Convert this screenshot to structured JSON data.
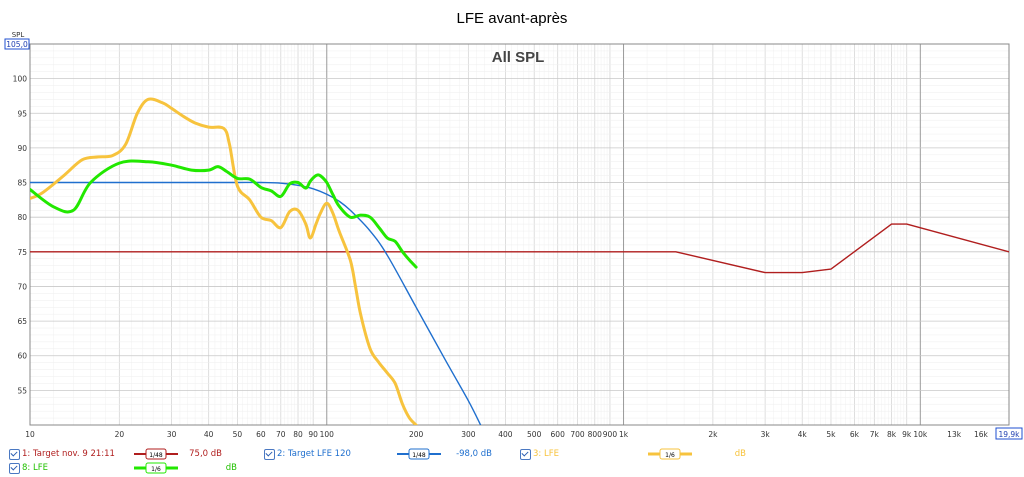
{
  "chart_data": {
    "type": "line",
    "title": "LFE avant-après",
    "subtitle": "All SPL",
    "ylabel": "SPL",
    "xlim": [
      10,
      19900
    ],
    "ylim": [
      50,
      105
    ],
    "x_scale": "log",
    "grid": true,
    "x_ticks": [
      {
        "v": 10,
        "label": "10"
      },
      {
        "v": 20,
        "label": "20"
      },
      {
        "v": 30,
        "label": "30"
      },
      {
        "v": 40,
        "label": "40"
      },
      {
        "v": 50,
        "label": "50"
      },
      {
        "v": 60,
        "label": "60"
      },
      {
        "v": 70,
        "label": "70"
      },
      {
        "v": 80,
        "label": "80"
      },
      {
        "v": 90,
        "label": "90"
      },
      {
        "v": 100,
        "label": "100"
      },
      {
        "v": 200,
        "label": "200"
      },
      {
        "v": 300,
        "label": "300"
      },
      {
        "v": 400,
        "label": "400"
      },
      {
        "v": 500,
        "label": "500"
      },
      {
        "v": 600,
        "label": "600"
      },
      {
        "v": 700,
        "label": "700"
      },
      {
        "v": 800,
        "label": "800"
      },
      {
        "v": 900,
        "label": "900"
      },
      {
        "v": 1000,
        "label": "1k"
      },
      {
        "v": 2000,
        "label": "2k"
      },
      {
        "v": 3000,
        "label": "3k"
      },
      {
        "v": 4000,
        "label": "4k"
      },
      {
        "v": 5000,
        "label": "5k"
      },
      {
        "v": 6000,
        "label": "6k"
      },
      {
        "v": 7000,
        "label": "7k"
      },
      {
        "v": 8000,
        "label": "8k"
      },
      {
        "v": 9000,
        "label": "9k"
      },
      {
        "v": 10000,
        "label": "10k"
      },
      {
        "v": 13000,
        "label": "13k"
      },
      {
        "v": 16000,
        "label": "16k"
      }
    ],
    "x_end_label": "19,9k",
    "y_top_label": "105,0",
    "y_ticks": [
      {
        "v": 100,
        "label": "100"
      },
      {
        "v": 95,
        "label": "95"
      },
      {
        "v": 90,
        "label": "90"
      },
      {
        "v": 85,
        "label": "85"
      },
      {
        "v": 80,
        "label": "80"
      },
      {
        "v": 75,
        "label": "75"
      },
      {
        "v": 70,
        "label": "70"
      },
      {
        "v": 65,
        "label": "65"
      },
      {
        "v": 60,
        "label": "60"
      },
      {
        "v": 55,
        "label": "55"
      }
    ],
    "series": [
      {
        "name": "1: Target nov. 9 21:11",
        "color": "#b01e1e",
        "smoothing": "1/48",
        "offset": "75,0 dB",
        "x": [
          10,
          1500,
          3000,
          4000,
          5000,
          8000,
          9000,
          19900
        ],
        "y": [
          75,
          75,
          72,
          72,
          72.5,
          79,
          79,
          75
        ]
      },
      {
        "name": "2: Target LFE 120",
        "color": "#1f6fce",
        "smoothing": "1/48",
        "offset": "-98,0 dB",
        "x": [
          10,
          20,
          30,
          40,
          50,
          60,
          70,
          80,
          90,
          100,
          110,
          120,
          140,
          160,
          200,
          250,
          300,
          330
        ],
        "y": [
          85,
          85,
          85,
          85,
          85,
          85,
          84.9,
          84.6,
          84.1,
          83.3,
          82.3,
          81,
          78,
          74.5,
          67,
          59.5,
          53.5,
          50
        ]
      },
      {
        "name": "3: LFE",
        "color": "#f7c33d",
        "smoothing": "1/6",
        "offset": "dB",
        "x": [
          10,
          11,
          13,
          15,
          17,
          19,
          21,
          23,
          25,
          28,
          30,
          33,
          36,
          40,
          45,
          47,
          50,
          55,
          60,
          65,
          70,
          75,
          80,
          85,
          88,
          92,
          95,
          100,
          105,
          110,
          120,
          125,
          130,
          140,
          150,
          160,
          170,
          180,
          190,
          200
        ],
        "y": [
          82.7,
          83.5,
          86,
          88.3,
          88.7,
          88.9,
          90.5,
          95,
          97,
          96.5,
          95.7,
          94.5,
          93.6,
          93,
          92.8,
          90.5,
          84.5,
          82.5,
          80,
          79.5,
          78.5,
          80.8,
          81,
          79,
          77,
          79,
          80.5,
          82,
          80.5,
          78,
          73.8,
          70,
          66,
          61,
          59,
          57.5,
          56,
          53,
          51,
          50
        ]
      },
      {
        "name": "8: LFE",
        "color": "#22e800",
        "smoothing": "1/6",
        "offset": "dB",
        "x": [
          10,
          12,
          14,
          16,
          20,
          25,
          30,
          35,
          40,
          43,
          46,
          50,
          55,
          60,
          65,
          70,
          75,
          80,
          85,
          88,
          92,
          95,
          100,
          105,
          110,
          120,
          130,
          140,
          150,
          160,
          170,
          180,
          190,
          200
        ],
        "y": [
          84,
          81.5,
          81,
          85,
          87.8,
          88,
          87.5,
          86.8,
          86.8,
          87.3,
          86.6,
          85.6,
          85.5,
          84.3,
          83.8,
          83,
          84.8,
          85,
          84.2,
          85.2,
          86,
          86,
          85,
          83.2,
          81.6,
          80,
          80.3,
          80,
          78.5,
          77,
          76.5,
          75,
          73.8,
          72.8
        ]
      }
    ]
  },
  "legend": [
    {
      "label": "1: Target nov. 9 21:11",
      "smoothing": "1/48",
      "value": "75,0 dB",
      "color": "#b01e1e"
    },
    {
      "label": "2: Target LFE 120",
      "smoothing": "1/48",
      "value": "-98,0 dB",
      "color": "#1f6fce"
    },
    {
      "label": "3: LFE",
      "smoothing": "1/6",
      "value": "dB",
      "color": "#f7c33d"
    },
    {
      "label": "8: LFE",
      "smoothing": "1/6",
      "value": "dB",
      "color": "#22e800"
    }
  ]
}
